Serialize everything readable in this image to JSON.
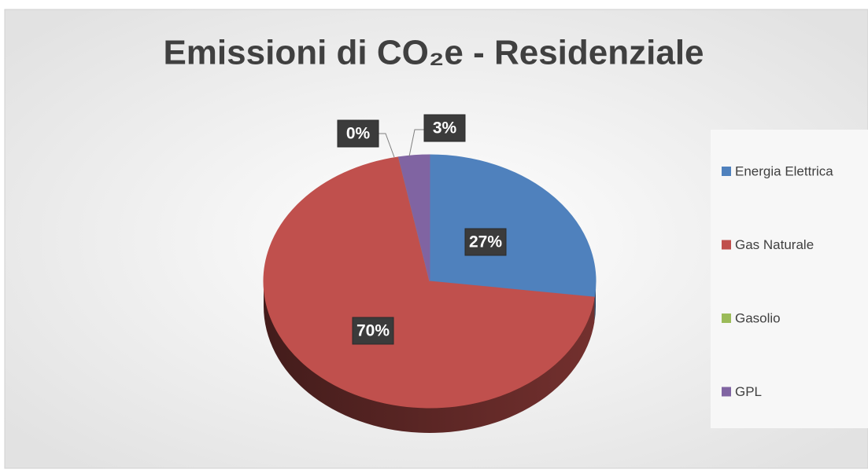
{
  "chart_data": {
    "type": "pie3d",
    "title": "Emissioni di CO₂e - Residenziale",
    "categories": [
      "Energia Elettrica",
      "Gas Naturale",
      "Gasolio",
      "GPL"
    ],
    "values": [
      27,
      70,
      0,
      3
    ],
    "value_labels": [
      "27%",
      "70%",
      "0%",
      "3%"
    ],
    "colors": [
      "#4f81bd",
      "#c0504d",
      "#9bbb59",
      "#8064a2"
    ],
    "legend": "right"
  }
}
